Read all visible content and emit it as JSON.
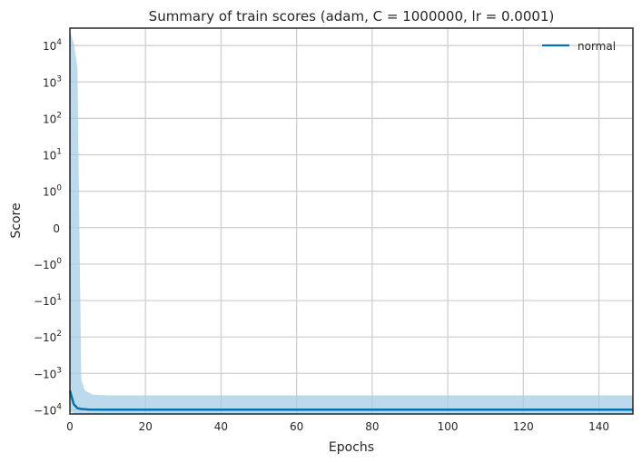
{
  "chart_data": {
    "type": "line",
    "title": "Summary of train scores (adam, C = 1000000, lr = 0.0001)",
    "xlabel": "Epochs",
    "ylabel": "Score",
    "xlim": [
      0,
      149
    ],
    "x_ticks": [
      0,
      20,
      40,
      60,
      80,
      100,
      120,
      140
    ],
    "y_scale": "symlog",
    "ylim": [
      -13000,
      30000
    ],
    "y_ticks": [
      {
        "value": 10000,
        "base": "10",
        "exp": "4"
      },
      {
        "value": 1000,
        "base": "10",
        "exp": "3"
      },
      {
        "value": 100,
        "base": "10",
        "exp": "2"
      },
      {
        "value": 10,
        "base": "10",
        "exp": "1"
      },
      {
        "value": 1,
        "base": "10",
        "exp": "0"
      },
      {
        "value": 0,
        "base": "0",
        "exp": ""
      },
      {
        "value": -1,
        "base": "−10",
        "exp": "0"
      },
      {
        "value": -10,
        "base": "−10",
        "exp": "1"
      },
      {
        "value": -100,
        "base": "−10",
        "exp": "2"
      },
      {
        "value": -1000,
        "base": "−10",
        "exp": "3"
      },
      {
        "value": -10000,
        "base": "−10",
        "exp": "4"
      }
    ],
    "grid": true,
    "legend_position": "upper right",
    "series": [
      {
        "name": "normal",
        "color": "#0072b2",
        "band_color": "#a6cde6",
        "mean": [
          [
            0,
            -3000
          ],
          [
            1,
            -7000
          ],
          [
            2,
            -9000
          ],
          [
            3,
            -9500
          ],
          [
            5,
            -9800
          ],
          [
            10,
            -9900
          ],
          [
            149,
            -9900
          ]
        ],
        "upper": [
          [
            0,
            25000
          ],
          [
            1,
            12000
          ],
          [
            2,
            2500
          ],
          [
            3,
            -1500
          ],
          [
            4,
            -3000
          ],
          [
            6,
            -3800
          ],
          [
            10,
            -4000
          ],
          [
            149,
            -4000
          ]
        ],
        "lower": [
          [
            0,
            -11000
          ],
          [
            1,
            -12500
          ],
          [
            3,
            -12800
          ],
          [
            149,
            -12800
          ]
        ]
      }
    ]
  }
}
